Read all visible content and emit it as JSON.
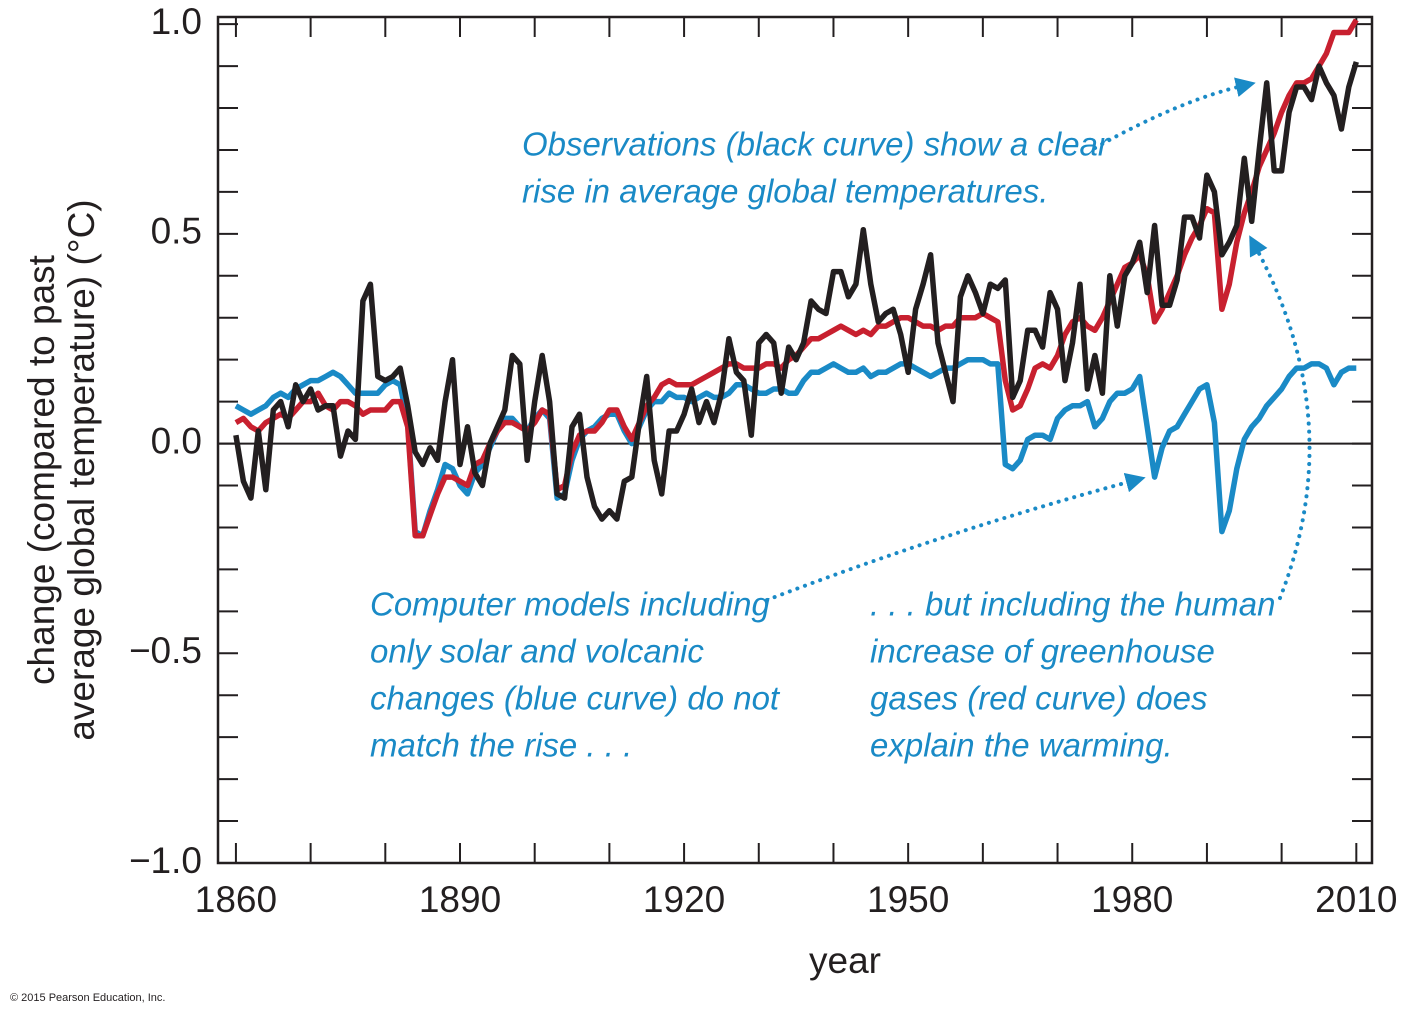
{
  "chart_data": {
    "type": "line",
    "y_label_lines": [
      "change (compared to past",
      "average global temperature) (°C)"
    ],
    "x_label": "year",
    "credit": "© 2015 Pearson Education, Inc.",
    "annotations": [
      {
        "lines": [
          "Observations (black curve) show a clear",
          "rise in average global temperatures."
        ]
      },
      {
        "lines": [
          "Computer models including",
          "only solar and volcanic",
          "changes (blue curve) do not",
          "match the rise . . ."
        ]
      },
      {
        "lines": [
          ". . . but including the human",
          "increase of greenhouse",
          "gases (red curve) does",
          "explain the warming."
        ]
      }
    ],
    "xlim": [
      1857.6,
      2012.1
    ],
    "ylim": [
      -1.0,
      1.017
    ],
    "xticks": [
      1860,
      1890,
      1920,
      1950,
      1980,
      2010
    ],
    "xminorticks": [
      1870,
      1880,
      1900,
      1910,
      1930,
      1940,
      1960,
      1970,
      1990,
      2000
    ],
    "yticks": [
      {
        "value": 1.0,
        "label": "1.0"
      },
      {
        "value": 0.5,
        "label": "0.5"
      },
      {
        "value": 0.0,
        "label": "0.0"
      },
      {
        "value": -0.5,
        "label": "−0.5"
      },
      {
        "value": -1.0,
        "label": "−1.0"
      }
    ],
    "yminorticks": [
      0.9,
      0.8,
      0.7,
      0.6,
      0.4,
      0.3,
      0.2,
      0.1,
      -0.1,
      -0.2,
      -0.3,
      -0.4,
      -0.6,
      -0.7,
      -0.8,
      -0.9
    ],
    "zero_line": true,
    "grid": false,
    "x": [
      1860,
      1861,
      1862,
      1863,
      1864,
      1865,
      1866,
      1867,
      1868,
      1869,
      1870,
      1871,
      1872,
      1873,
      1874,
      1875,
      1876,
      1877,
      1878,
      1879,
      1880,
      1881,
      1882,
      1883,
      1884,
      1885,
      1886,
      1887,
      1888,
      1889,
      1890,
      1891,
      1892,
      1893,
      1894,
      1895,
      1896,
      1897,
      1898,
      1899,
      1900,
      1901,
      1902,
      1903,
      1904,
      1905,
      1906,
      1907,
      1908,
      1909,
      1910,
      1911,
      1912,
      1913,
      1914,
      1915,
      1916,
      1917,
      1918,
      1919,
      1920,
      1921,
      1922,
      1923,
      1924,
      1925,
      1926,
      1927,
      1928,
      1929,
      1930,
      1931,
      1932,
      1933,
      1934,
      1935,
      1936,
      1937,
      1938,
      1939,
      1940,
      1941,
      1942,
      1943,
      1944,
      1945,
      1946,
      1947,
      1948,
      1949,
      1950,
      1951,
      1952,
      1953,
      1954,
      1955,
      1956,
      1957,
      1958,
      1959,
      1960,
      1961,
      1962,
      1963,
      1964,
      1965,
      1966,
      1967,
      1968,
      1969,
      1970,
      1971,
      1972,
      1973,
      1974,
      1975,
      1976,
      1977,
      1978,
      1979,
      1980,
      1981,
      1982,
      1983,
      1984,
      1985,
      1986,
      1987,
      1988,
      1989,
      1990,
      1991,
      1992,
      1993,
      1994,
      1995,
      1996,
      1997,
      1998,
      1999,
      2000,
      2001,
      2002,
      2003,
      2004,
      2005,
      2006,
      2007,
      2008,
      2009,
      2010
    ],
    "series": [
      {
        "color": "#1a8ac6",
        "values": [
          0.09,
          0.08,
          0.07,
          0.08,
          0.09,
          0.11,
          0.12,
          0.11,
          0.13,
          0.14,
          0.15,
          0.15,
          0.16,
          0.17,
          0.16,
          0.14,
          0.12,
          0.12,
          0.12,
          0.12,
          0.14,
          0.15,
          0.14,
          0.05,
          -0.21,
          -0.22,
          -0.16,
          -0.11,
          -0.05,
          -0.06,
          -0.1,
          -0.12,
          -0.07,
          -0.05,
          -0.01,
          0.03,
          0.06,
          0.06,
          0.04,
          0.03,
          0.06,
          0.08,
          0.06,
          -0.13,
          -0.12,
          -0.04,
          0.01,
          0.03,
          0.04,
          0.06,
          0.07,
          0.07,
          0.03,
          0.0,
          0.04,
          0.08,
          0.1,
          0.1,
          0.12,
          0.11,
          0.11,
          0.1,
          0.11,
          0.12,
          0.11,
          0.11,
          0.12,
          0.14,
          0.14,
          0.13,
          0.12,
          0.12,
          0.13,
          0.13,
          0.12,
          0.12,
          0.15,
          0.17,
          0.17,
          0.18,
          0.19,
          0.18,
          0.17,
          0.17,
          0.18,
          0.16,
          0.17,
          0.17,
          0.18,
          0.19,
          0.19,
          0.18,
          0.17,
          0.16,
          0.17,
          0.18,
          0.18,
          0.19,
          0.2,
          0.2,
          0.2,
          0.19,
          0.19,
          -0.05,
          -0.06,
          -0.04,
          0.01,
          0.02,
          0.02,
          0.01,
          0.06,
          0.08,
          0.09,
          0.09,
          0.1,
          0.04,
          0.06,
          0.1,
          0.12,
          0.12,
          0.13,
          0.16,
          0.04,
          -0.08,
          -0.01,
          0.03,
          0.04,
          0.07,
          0.1,
          0.13,
          0.14,
          0.05,
          -0.21,
          -0.16,
          -0.06,
          0.01,
          0.04,
          0.06,
          0.09,
          0.11,
          0.13,
          0.16,
          0.18,
          0.18,
          0.19,
          0.19,
          0.18,
          0.14,
          0.17,
          0.18,
          0.18
        ]
      },
      {
        "color": "#c8202f",
        "values": [
          0.05,
          0.06,
          0.04,
          0.03,
          0.05,
          0.06,
          0.07,
          0.06,
          0.08,
          0.1,
          0.1,
          0.12,
          0.09,
          0.08,
          0.1,
          0.1,
          0.09,
          0.07,
          0.08,
          0.08,
          0.08,
          0.1,
          0.1,
          0.04,
          -0.22,
          -0.22,
          -0.17,
          -0.12,
          -0.08,
          -0.08,
          -0.09,
          -0.1,
          -0.05,
          -0.04,
          0.0,
          0.03,
          0.05,
          0.05,
          0.04,
          0.03,
          0.05,
          0.08,
          0.07,
          -0.11,
          -0.1,
          -0.02,
          0.02,
          0.03,
          0.03,
          0.05,
          0.08,
          0.08,
          0.04,
          0.01,
          0.05,
          0.09,
          0.11,
          0.14,
          0.15,
          0.14,
          0.14,
          0.14,
          0.15,
          0.16,
          0.17,
          0.18,
          0.19,
          0.19,
          0.18,
          0.18,
          0.18,
          0.19,
          0.19,
          0.18,
          0.2,
          0.21,
          0.23,
          0.25,
          0.25,
          0.26,
          0.27,
          0.28,
          0.27,
          0.26,
          0.27,
          0.26,
          0.28,
          0.28,
          0.29,
          0.3,
          0.3,
          0.29,
          0.28,
          0.28,
          0.27,
          0.28,
          0.28,
          0.3,
          0.3,
          0.3,
          0.31,
          0.3,
          0.29,
          0.15,
          0.08,
          0.09,
          0.13,
          0.18,
          0.19,
          0.18,
          0.21,
          0.26,
          0.29,
          0.3,
          0.28,
          0.27,
          0.3,
          0.34,
          0.38,
          0.42,
          0.43,
          0.45,
          0.4,
          0.29,
          0.32,
          0.36,
          0.4,
          0.45,
          0.49,
          0.52,
          0.56,
          0.55,
          0.32,
          0.38,
          0.48,
          0.55,
          0.6,
          0.66,
          0.7,
          0.74,
          0.79,
          0.83,
          0.86,
          0.86,
          0.87,
          0.9,
          0.93,
          0.98,
          0.98,
          0.98,
          1.01
        ]
      },
      {
        "color": "#231f20",
        "values": [
          0.02,
          -0.09,
          -0.13,
          0.03,
          -0.11,
          0.08,
          0.1,
          0.04,
          0.14,
          0.1,
          0.13,
          0.08,
          0.09,
          0.09,
          -0.03,
          0.03,
          0.01,
          0.34,
          0.38,
          0.16,
          0.15,
          0.16,
          0.18,
          0.09,
          -0.02,
          -0.05,
          -0.01,
          -0.04,
          0.1,
          0.2,
          -0.05,
          0.04,
          -0.07,
          -0.1,
          0.0,
          0.04,
          0.08,
          0.21,
          0.19,
          -0.04,
          0.1,
          0.21,
          0.1,
          -0.12,
          -0.13,
          0.04,
          0.07,
          -0.08,
          -0.15,
          -0.18,
          -0.16,
          -0.18,
          -0.09,
          -0.08,
          0.05,
          0.16,
          -0.04,
          -0.12,
          0.03,
          0.03,
          0.07,
          0.13,
          0.05,
          0.1,
          0.05,
          0.12,
          0.25,
          0.17,
          0.15,
          0.02,
          0.24,
          0.26,
          0.24,
          0.12,
          0.23,
          0.2,
          0.24,
          0.34,
          0.32,
          0.31,
          0.41,
          0.41,
          0.35,
          0.38,
          0.51,
          0.38,
          0.29,
          0.31,
          0.32,
          0.26,
          0.17,
          0.32,
          0.38,
          0.45,
          0.24,
          0.17,
          0.1,
          0.35,
          0.4,
          0.36,
          0.31,
          0.38,
          0.37,
          0.39,
          0.11,
          0.15,
          0.27,
          0.27,
          0.23,
          0.36,
          0.32,
          0.15,
          0.24,
          0.38,
          0.13,
          0.21,
          0.12,
          0.4,
          0.28,
          0.4,
          0.43,
          0.48,
          0.36,
          0.52,
          0.33,
          0.33,
          0.39,
          0.54,
          0.54,
          0.49,
          0.64,
          0.6,
          0.45,
          0.48,
          0.52,
          0.68,
          0.53,
          0.7,
          0.86,
          0.65,
          0.65,
          0.79,
          0.85,
          0.85,
          0.82,
          0.9,
          0.86,
          0.83,
          0.75,
          0.85,
          0.91
        ]
      }
    ]
  }
}
